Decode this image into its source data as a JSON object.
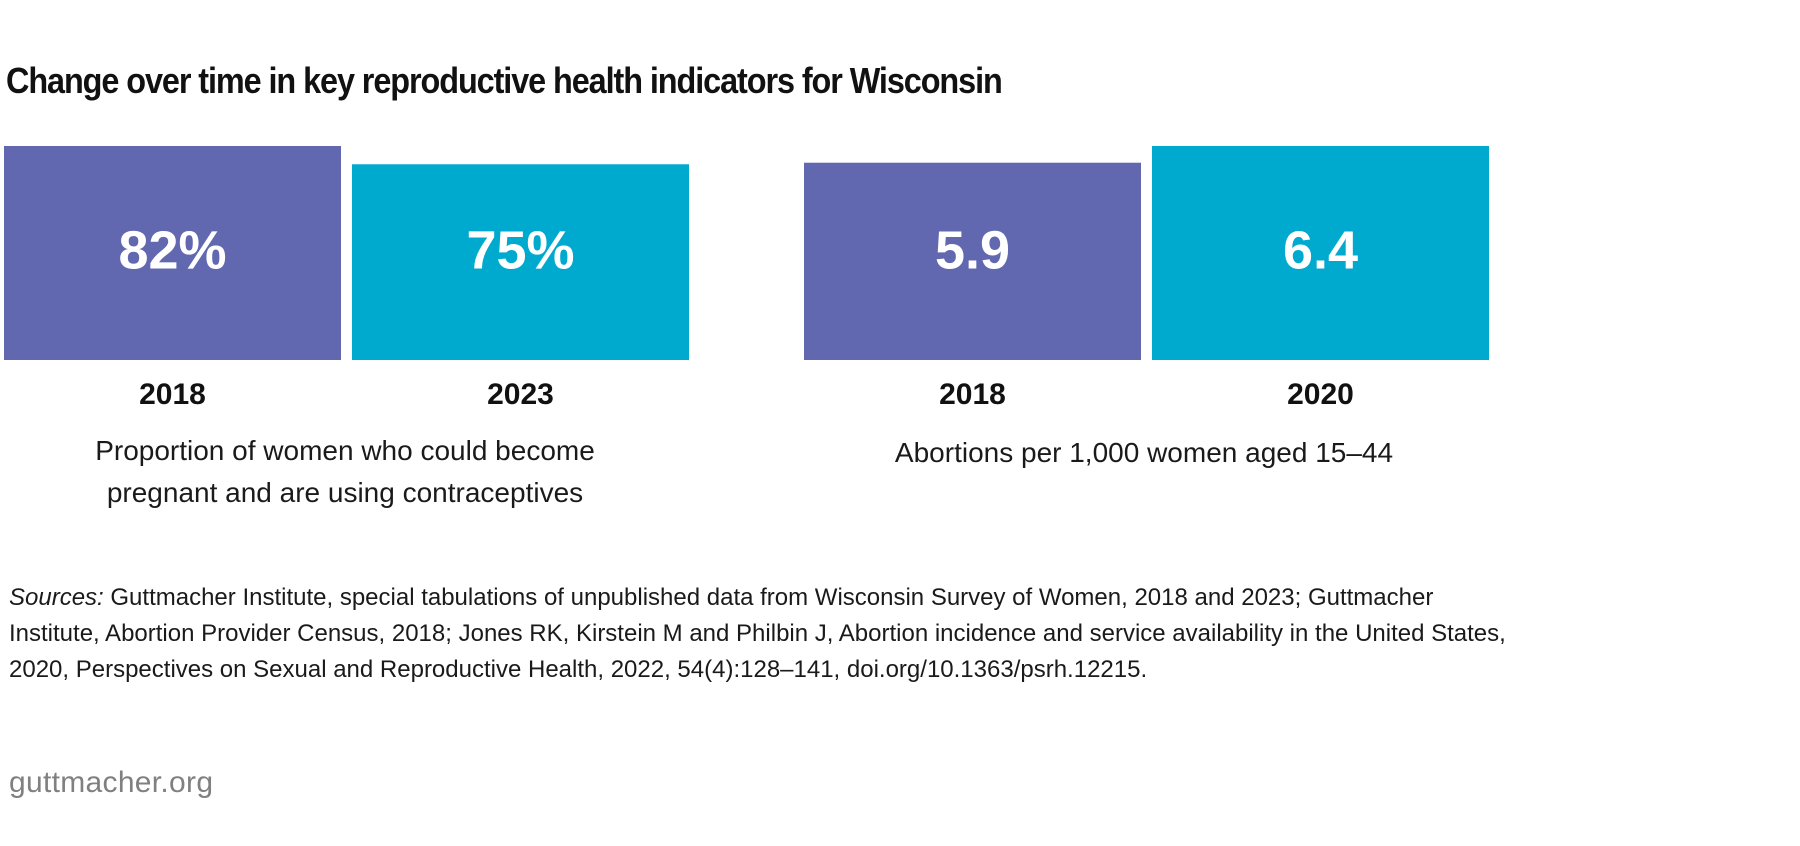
{
  "title": "Change over time in key reproductive health indicators for Wisconsin",
  "chart_data": [
    {
      "type": "bar",
      "categories": [
        "2018",
        "2023"
      ],
      "values": [
        82,
        75
      ],
      "value_labels": [
        "82%",
        "75%"
      ],
      "unit": "%",
      "ylim": [
        0,
        82
      ],
      "bar_colors": [
        "#6168b0",
        "#00aacf"
      ],
      "caption": "Proportion of women who could become pregnant and are using contraceptives",
      "grid": false
    },
    {
      "type": "bar",
      "categories": [
        "2018",
        "2020"
      ],
      "values": [
        5.9,
        6.4
      ],
      "value_labels": [
        "5.9",
        "6.4"
      ],
      "ylim": [
        0,
        6.4
      ],
      "bar_colors": [
        "#6168b0",
        "#00aacf"
      ],
      "caption": "Abortions per 1,000 women aged 15–44",
      "grid": false
    }
  ],
  "sources": {
    "lead": "Sources:",
    "text": "Guttmacher Institute, special tabulations of unpublished data from Wisconsin Survey of Women, 2018 and 2023; Guttmacher Institute, Abortion Provider Census, 2018; Jones RK, Kirstein M and Philbin J, Abortion incidence and service availability in the United States, 2020, Perspectives on Sexual and Reproductive Health, 2022, 54(4):128–141, doi.org/10.1363/psrh.12215."
  },
  "footer": {
    "site": "guttmacher.org"
  },
  "colors": {
    "series_2018": "#6168b0",
    "series_later": "#00aacf"
  }
}
